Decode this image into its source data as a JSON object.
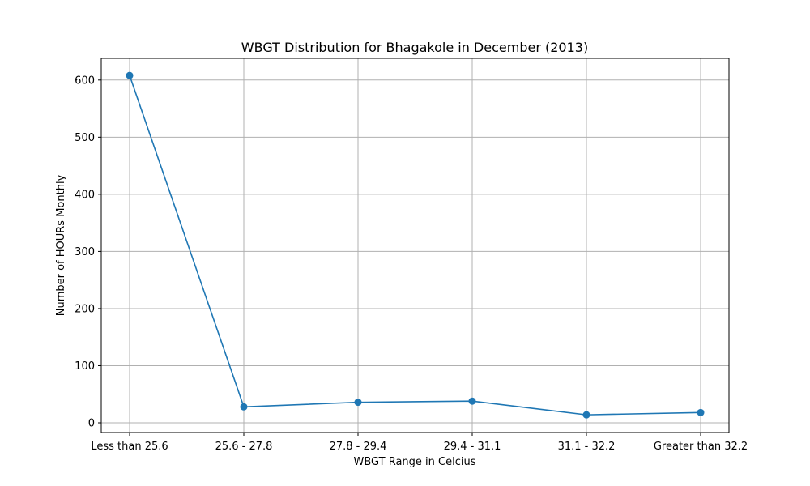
{
  "chart_data": {
    "type": "line",
    "title": "WBGT Distribution for Bhagakole in December (2013)",
    "xlabel": "WBGT Range in Celcius",
    "ylabel": "Number of HOURs Monthly",
    "categories": [
      "Less than 25.6",
      "25.6 - 27.8",
      "27.8 - 29.4",
      "29.4 - 31.1",
      "31.1 - 32.2",
      "Greater than 32.2"
    ],
    "series": [
      {
        "values": [
          608,
          28,
          36,
          38,
          14,
          18
        ]
      }
    ],
    "ylim": [
      -17,
      638
    ],
    "yticks": [
      0,
      100,
      200,
      300,
      400,
      500,
      600
    ],
    "grid": true,
    "line_color": "#1f77b4",
    "marker": "circle"
  }
}
